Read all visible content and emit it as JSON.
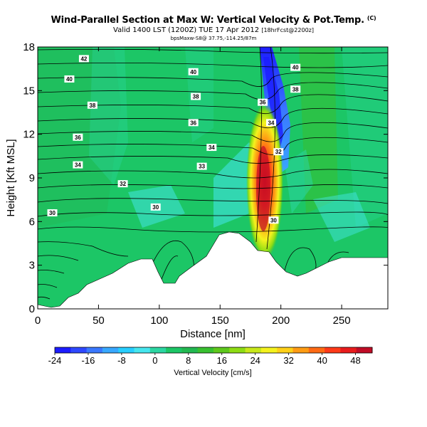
{
  "chart_data": {
    "type": "heatmap",
    "title": "Wind-Parallel Section at Max W: Vertical Velocity & Pot.Temp.",
    "title_mark": "(C)",
    "subtitle": "Valid 1400 LST (1200Z) TUE 17 Apr 2012",
    "subtitle_note": "[18hrFcst@2200z]",
    "info_line": "bpsMaxw-S8@ 37.75,-114.25/87m",
    "xlabel": "Distance [nm]",
    "ylabel": "Height [Kft MSL]",
    "xlim": [
      0,
      288
    ],
    "ylim": [
      0,
      18
    ],
    "x_ticks": [
      0,
      50,
      100,
      150,
      200,
      250
    ],
    "y_ticks": [
      0,
      3,
      6,
      9,
      12,
      15,
      18
    ],
    "colorbar": {
      "label": "Vertical Velocity [cm/s]",
      "range": [
        -24,
        52
      ],
      "tick_values": [
        -24,
        -16,
        -8,
        0,
        8,
        16,
        24,
        32,
        40,
        48
      ],
      "colors": [
        "#1c1cff",
        "#2e48ff",
        "#3a78ff",
        "#38a8ff",
        "#28ceff",
        "#46e6ee",
        "#2cd6a2",
        "#1cc666",
        "#22b850",
        "#38c030",
        "#5ec81c",
        "#8edc14",
        "#c8e81a",
        "#f4f21e",
        "#ffd018",
        "#ff9c14",
        "#ff6a14",
        "#ff3a18",
        "#e81c1c",
        "#c00c26"
      ]
    },
    "isentrope_labels": [
      {
        "text": "42",
        "x": 38,
        "z": 17.2
      },
      {
        "text": "40",
        "x": 26,
        "z": 15.8
      },
      {
        "text": "38",
        "x": 45,
        "z": 14.0
      },
      {
        "text": "36",
        "x": 33,
        "z": 11.8
      },
      {
        "text": "34",
        "x": 33,
        "z": 9.9
      },
      {
        "text": "32",
        "x": 70,
        "z": 8.6
      },
      {
        "text": "30",
        "x": 12,
        "z": 6.6
      },
      {
        "text": "40",
        "x": 128,
        "z": 16.3
      },
      {
        "text": "38",
        "x": 130,
        "z": 14.6
      },
      {
        "text": "36",
        "x": 128,
        "z": 12.8
      },
      {
        "text": "34",
        "x": 143,
        "z": 11.1
      },
      {
        "text": "33",
        "x": 135,
        "z": 9.8
      },
      {
        "text": "30",
        "x": 97,
        "z": 7.0
      },
      {
        "text": "40",
        "x": 212,
        "z": 16.6
      },
      {
        "text": "38",
        "x": 212,
        "z": 15.1
      },
      {
        "text": "36",
        "x": 185,
        "z": 14.2
      },
      {
        "text": "34",
        "x": 192,
        "z": 12.8
      },
      {
        "text": "32",
        "x": 198,
        "z": 10.8
      },
      {
        "text": "30",
        "x": 194,
        "z": 6.1
      }
    ]
  }
}
